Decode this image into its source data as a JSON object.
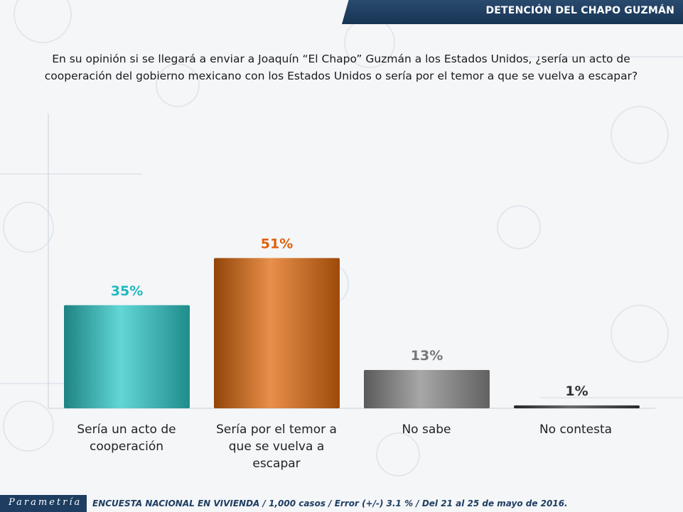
{
  "header": {
    "title": "DETENCIÓN DEL CHAPO GUZMÁN"
  },
  "question": {
    "line1": "En su opinión si se llegará a enviar a Joaquín “El Chapo” Guzmán a los Estados Unidos, ¿sería un acto de",
    "line2": "cooperación del gobierno mexicano con los Estados Unidos o sería por el temor a que se vuelva a escapar?"
  },
  "chart_data": {
    "type": "bar",
    "categories": [
      "Sería un acto de cooperación",
      "Sería por el temor a que se vuelva a escapar",
      "No sabe",
      "No contesta"
    ],
    "values": [
      35,
      51,
      13,
      1
    ],
    "value_labels": [
      "35%",
      "51%",
      "13%",
      "1%"
    ],
    "ylim": [
      0,
      100
    ],
    "colors": [
      "#2ec8c8",
      "#e06a0e",
      "#8a8a8a",
      "#3a3a3a"
    ],
    "label_colors": [
      "#20b8c0",
      "#e0600a",
      "#777777",
      "#333333"
    ]
  },
  "labels": {
    "cat0_line1": "Sería un acto de",
    "cat0_line2": "cooperación",
    "cat1_line1": "Sería por el temor a",
    "cat1_line2": "que se vuelva a",
    "cat1_line3": "escapar",
    "cat2_line1": "No sabe",
    "cat3_line1": "No contesta"
  },
  "footer": {
    "logo": "Parametría",
    "text": "ENCUESTA NACIONAL EN VIVIENDA / 1,000 casos / Error (+/-) 3.1 % / Del 21 al 25 de mayo de 2016."
  }
}
